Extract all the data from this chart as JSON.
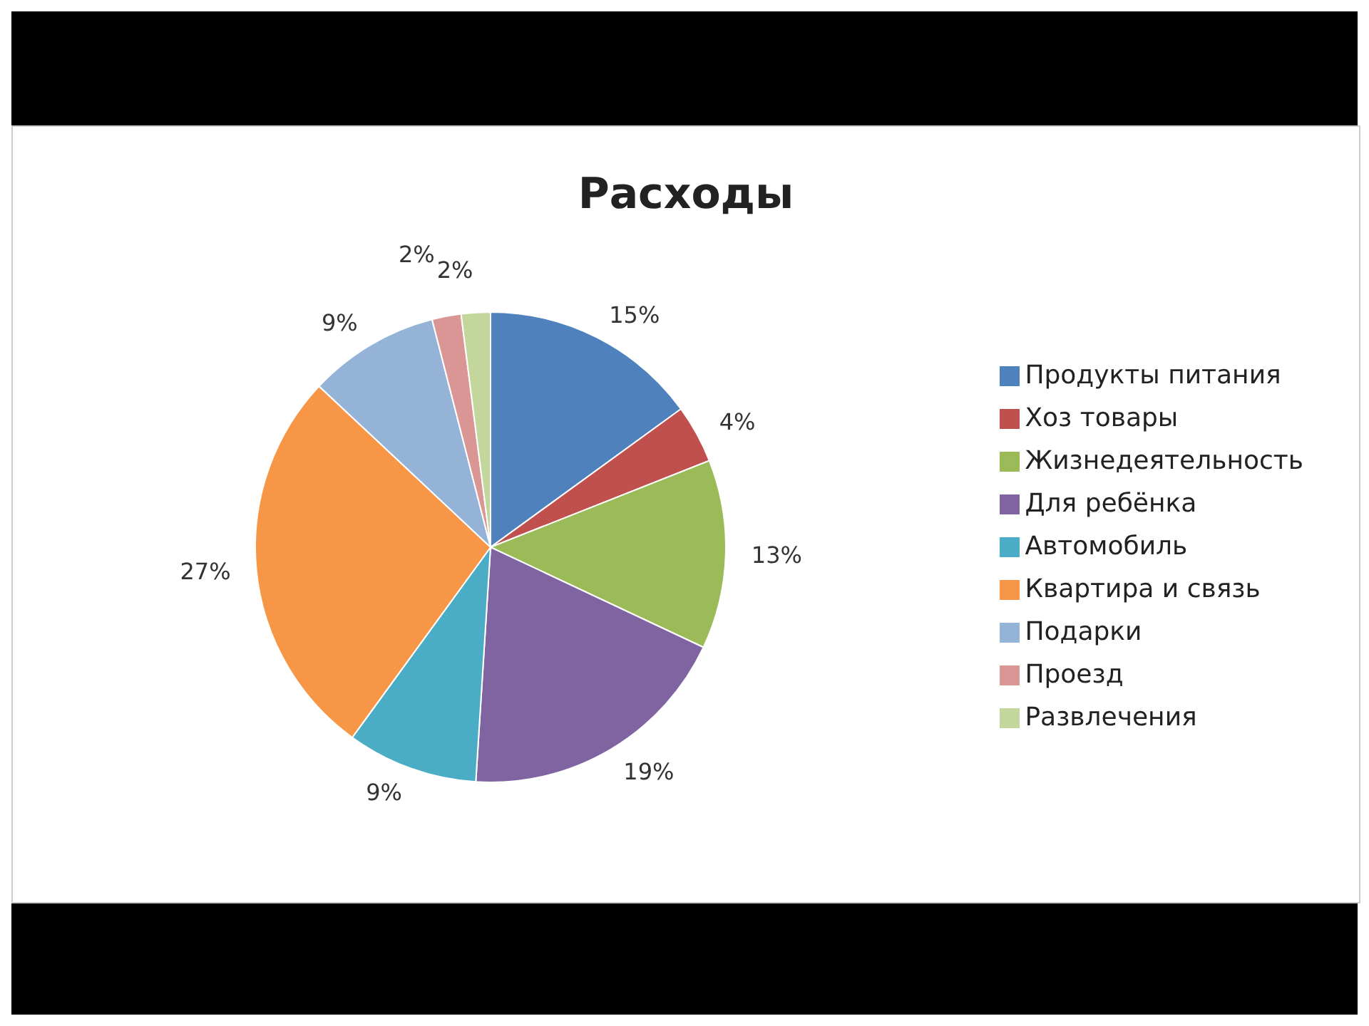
{
  "chart_data": {
    "type": "pie",
    "title": "Расходы",
    "categories": [
      "Продукты питания",
      "Хоз товары",
      "Жизнедеятельность",
      "Для ребёнка",
      "Автомобиль",
      "Квартира и связь",
      "Подарки",
      "Проезд",
      "Развлечения"
    ],
    "values": [
      15,
      4,
      13,
      19,
      9,
      27,
      9,
      2,
      2
    ],
    "value_labels": [
      "15%",
      "4%",
      "13%",
      "19%",
      "9%",
      "27%",
      "9%",
      "2%",
      "2%"
    ],
    "colors": [
      "#4f81bd",
      "#c0504d",
      "#9bbb59",
      "#8064a2",
      "#4bacc6",
      "#f79646",
      "#95b3d7",
      "#d99694",
      "#c3d69b"
    ],
    "legend": "right"
  }
}
